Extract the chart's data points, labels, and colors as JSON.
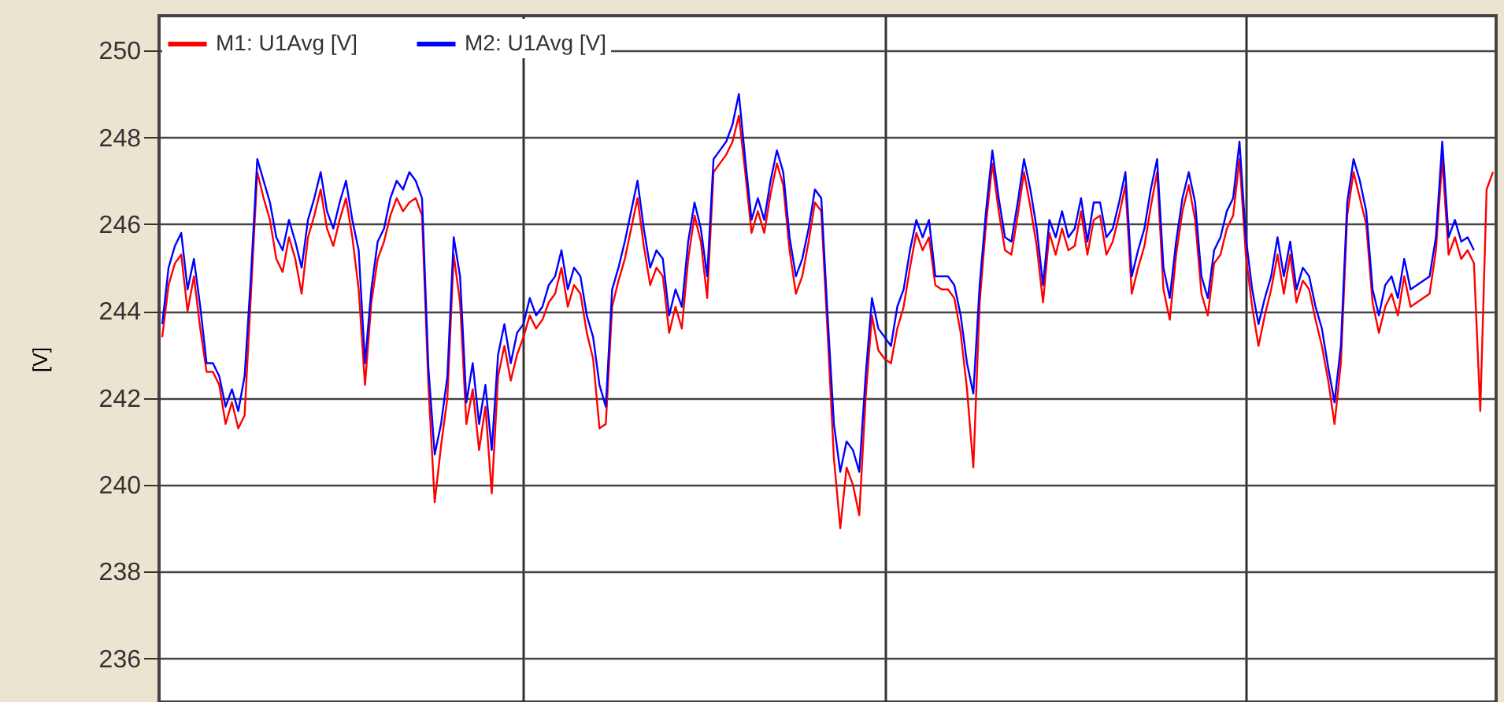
{
  "chart_data": {
    "type": "line",
    "ylabel": "[V]",
    "categories": [
      null,
      null,
      null,
      null,
      null,
      null,
      null,
      null,
      null,
      null,
      null,
      null,
      null,
      null,
      null,
      null,
      null,
      null,
      null,
      null,
      null,
      null,
      null,
      null,
      null,
      null,
      null,
      null,
      null,
      null,
      null,
      null,
      null,
      null,
      null,
      null,
      null,
      null,
      null,
      null,
      null,
      null,
      null,
      null,
      null,
      null,
      null,
      null,
      null,
      null,
      null,
      null,
      null,
      null,
      null,
      null,
      null,
      null,
      null,
      null,
      null,
      null,
      null,
      null,
      null,
      null,
      null,
      null,
      null,
      null,
      null,
      null,
      null,
      null,
      null,
      null,
      null,
      null,
      null,
      null,
      null,
      null,
      null,
      null,
      null,
      null,
      null,
      null,
      null,
      null,
      null,
      null,
      null,
      null,
      null,
      null,
      null,
      null,
      null,
      null,
      null,
      null,
      null,
      null,
      null,
      null,
      null,
      null,
      null,
      null,
      null,
      null,
      null,
      null,
      null,
      null,
      null,
      null,
      null,
      null,
      null,
      null,
      null,
      null,
      null,
      null,
      null,
      null,
      null,
      null,
      null,
      null,
      null,
      null,
      null,
      null,
      null,
      null,
      null,
      null,
      null,
      null,
      null,
      null,
      null,
      null,
      null,
      null,
      null,
      null,
      null,
      null,
      null,
      null,
      null,
      null,
      null,
      null,
      null,
      null,
      null,
      null,
      null,
      null,
      null,
      null,
      null,
      null,
      null,
      null,
      null,
      null,
      null,
      null,
      null,
      null,
      null,
      null,
      null,
      null,
      null,
      null,
      null,
      null,
      null,
      null,
      null,
      null,
      null,
      null,
      null,
      null,
      null,
      null,
      null,
      null,
      null,
      null,
      null,
      null,
      null,
      null,
      null,
      null,
      null,
      null,
      null,
      null,
      null,
      null,
      null
    ],
    "series": [
      {
        "name": "M1: U1Avg [V]",
        "color": "#ff0000",
        "values": [
          243.4,
          244.6,
          245.1,
          245.3,
          244,
          244.8,
          243.6,
          242.6,
          242.6,
          242.3,
          241.4,
          241.9,
          241.3,
          241.6,
          244.4,
          247.2,
          246.6,
          246.1,
          245.2,
          244.9,
          245.7,
          245.2,
          244.4,
          245.7,
          246.2,
          246.8,
          245.9,
          245.5,
          246.1,
          246.6,
          245.7,
          244.5,
          242.3,
          244.2,
          245.2,
          245.6,
          246.2,
          246.6,
          246.3,
          246.5,
          246.6,
          246.2,
          242.3,
          239.6,
          240.9,
          242,
          245.3,
          244.2,
          241.4,
          242.2,
          240.8,
          241.8,
          239.8,
          242.5,
          243.2,
          242.4,
          243,
          243.4,
          243.9,
          243.6,
          243.8,
          244.2,
          244.4,
          245,
          244.1,
          244.6,
          244.4,
          243.5,
          242.9,
          241.3,
          241.4,
          244.1,
          244.7,
          245.2,
          245.9,
          246.6,
          245.5,
          244.6,
          245,
          244.8,
          243.5,
          244.1,
          243.6,
          245.2,
          246.2,
          245.6,
          244.3,
          247.2,
          247.4,
          247.6,
          247.9,
          248.5,
          247.2,
          245.8,
          246.3,
          245.8,
          246.7,
          247.4,
          246.9,
          245.4,
          244.4,
          244.8,
          245.6,
          246.5,
          246.3,
          243.5,
          240.6,
          239,
          240.4,
          240,
          239.3,
          242,
          243.9,
          243.1,
          242.9,
          242.8,
          243.6,
          244.1,
          245,
          245.8,
          245.4,
          245.7,
          244.6,
          244.5,
          244.5,
          244.3,
          243.5,
          242.2,
          240.4,
          244.2,
          246,
          247.4,
          246.3,
          245.4,
          245.3,
          246.2,
          247.2,
          246.4,
          245.5,
          244.2,
          245.8,
          245.3,
          245.9,
          245.4,
          245.5,
          246.3,
          245.3,
          246.1,
          246.2,
          245.3,
          245.6,
          246.2,
          246.9,
          244.4,
          245,
          245.5,
          246.4,
          247.2,
          244.5,
          243.8,
          245.3,
          246.3,
          246.9,
          246.1,
          244.4,
          243.9,
          245.1,
          245.3,
          245.9,
          246.2,
          247.5,
          245.3,
          244.1,
          243.2,
          243.9,
          244.5,
          245.3,
          244.4,
          245.3,
          244.2,
          244.7,
          244.5,
          243.8,
          243.2,
          242.4,
          241.4,
          242.8,
          246.2,
          247.2,
          246.6,
          246,
          244.2,
          243.5,
          244.1,
          244.4,
          243.9,
          244.8,
          244.1,
          244.2,
          244.3,
          244.4,
          245.4,
          247.5,
          245.3,
          245.7,
          245.2,
          245.4,
          245.1,
          241.7,
          246.8,
          247.2
        ]
      },
      {
        "name": "M2: U1Avg [V]",
        "color": "#0000ff",
        "values": [
          243.7,
          245,
          245.5,
          245.8,
          244.5,
          245.2,
          244.1,
          242.8,
          242.8,
          242.5,
          241.8,
          242.2,
          241.7,
          242.5,
          244.8,
          247.5,
          247,
          246.5,
          245.7,
          245.4,
          246.1,
          245.6,
          245,
          246.1,
          246.6,
          247.2,
          246.3,
          245.9,
          246.5,
          247,
          246.1,
          245.4,
          242.8,
          244.5,
          245.6,
          245.9,
          246.6,
          247,
          246.8,
          247.2,
          247,
          246.6,
          242.7,
          240.7,
          241.4,
          242.5,
          245.7,
          244.8,
          241.9,
          242.8,
          241.4,
          242.3,
          240.8,
          243,
          243.7,
          242.8,
          243.5,
          243.7,
          244.3,
          243.9,
          244.1,
          244.6,
          244.8,
          245.4,
          244.5,
          245,
          244.8,
          243.9,
          243.4,
          242.3,
          241.8,
          244.5,
          245,
          245.6,
          246.3,
          247,
          245.9,
          245,
          245.4,
          245.2,
          243.9,
          244.5,
          244.1,
          245.6,
          246.5,
          245.9,
          244.8,
          247.5,
          247.7,
          247.9,
          248.3,
          249,
          247.5,
          246.1,
          246.6,
          246.1,
          247,
          247.7,
          247.2,
          245.7,
          244.8,
          245.2,
          245.9,
          246.8,
          246.6,
          243.9,
          241.4,
          240.3,
          241,
          240.8,
          240.3,
          242.5,
          244.3,
          243.6,
          243.4,
          243.2,
          244.1,
          244.5,
          245.4,
          246.1,
          245.7,
          246.1,
          244.8,
          244.8,
          244.8,
          244.6,
          243.9,
          242.8,
          242.1,
          244.6,
          246.3,
          247.7,
          246.6,
          245.7,
          245.6,
          246.5,
          247.5,
          246.8,
          245.9,
          244.6,
          246.1,
          245.7,
          246.3,
          245.7,
          245.9,
          246.6,
          245.6,
          246.5,
          246.5,
          245.7,
          245.9,
          246.5,
          247.2,
          244.8,
          245.4,
          245.9,
          246.8,
          247.5,
          245,
          244.3,
          245.6,
          246.6,
          247.2,
          246.5,
          244.8,
          244.3,
          245.4,
          245.7,
          246.3,
          246.6,
          247.9,
          245.7,
          244.5,
          243.7,
          244.3,
          244.8,
          245.7,
          244.8,
          245.6,
          244.5,
          245,
          244.8,
          244.1,
          243.6,
          242.7,
          241.9,
          243.2,
          246.5,
          247.5,
          247,
          246.3,
          244.5,
          243.9,
          244.6,
          244.8,
          244.3,
          245.2,
          244.5,
          244.6,
          244.7,
          244.8,
          245.7,
          247.9,
          245.7,
          246.1,
          245.6,
          245.7,
          245.4,
          null,
          null,
          null
        ]
      }
    ],
    "ylim": [
      235,
      250.8
    ],
    "yticks": [
      236,
      238,
      240,
      242,
      244,
      246,
      248,
      250
    ],
    "grid": true,
    "legend": "top left",
    "tick_labels": "y",
    "marker": "none",
    "line_style": "solid"
  }
}
